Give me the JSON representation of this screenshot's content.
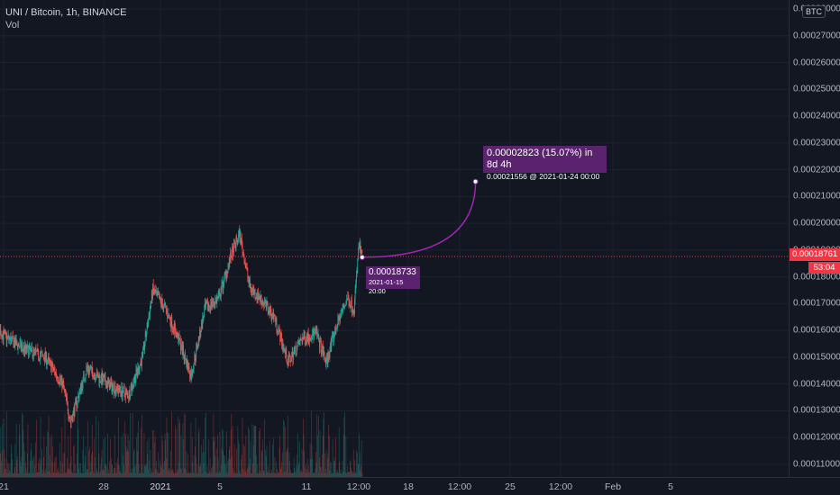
{
  "legend": {
    "symbol_line": "UNI / Bitcoin, 1h, BINANCE",
    "volume_label": "Vol"
  },
  "price_axis": {
    "currency_badge": "BTC",
    "ticks": [
      "0.00028000",
      "0.00027000",
      "0.00026000",
      "0.00025000",
      "0.00024000",
      "0.00023000",
      "0.00022000",
      "0.00021000",
      "0.00020000",
      "0.00019000",
      "0.00018000",
      "0.00017000",
      "0.00016000",
      "0.00015000",
      "0.00014000",
      "0.00013000",
      "0.00012000",
      "0.00011000"
    ],
    "current_price": "0.00018761",
    "countdown": "53:04"
  },
  "time_axis": {
    "ticks": [
      "21",
      "28",
      "2021",
      "5",
      "11",
      "12:00",
      "18",
      "12:00",
      "25",
      "12:00",
      "Feb",
      "5"
    ]
  },
  "projection": {
    "change_text": "0.00002823 (15.07%) in 8d 4h",
    "target_text": "0.00021556 @ 2021-01-24  00:00",
    "start_price": "0.00018733",
    "start_time": "2021-01-15 20:00"
  },
  "colors": {
    "up": "#26a69a",
    "down": "#ef5350",
    "projection": "#9c27b0",
    "label_bg": "#5b2270",
    "price_tag": "#f23645"
  },
  "chart_data": {
    "type": "candlestick",
    "symbol": "UNI / Bitcoin",
    "interval": "1h",
    "exchange": "BINANCE",
    "ylim": [
      0.000105,
      0.000285
    ],
    "close_path": [
      {
        "x": "2020-12-19T12:00",
        "y": 0.000168
      },
      {
        "x": "2020-12-21T00:00",
        "y": 0.000158
      },
      {
        "x": "2020-12-22T12:00",
        "y": 0.000153
      },
      {
        "x": "2020-12-24T00:00",
        "y": 0.00015
      },
      {
        "x": "2020-12-25T06:00",
        "y": 0.00014
      },
      {
        "x": "2020-12-25T20:00",
        "y": 0.000126
      },
      {
        "x": "2020-12-27T00:00",
        "y": 0.000146
      },
      {
        "x": "2020-12-28T12:00",
        "y": 0.00014
      },
      {
        "x": "2020-12-30T00:00",
        "y": 0.000136
      },
      {
        "x": "2020-12-31T00:00",
        "y": 0.00015
      },
      {
        "x": "2020-12-31T18:00",
        "y": 0.000175
      },
      {
        "x": "2021-01-01T16:00",
        "y": 0.000168
      },
      {
        "x": "2021-01-02T16:00",
        "y": 0.000156
      },
      {
        "x": "2021-01-03T12:00",
        "y": 0.000143
      },
      {
        "x": "2021-01-04T12:00",
        "y": 0.000168
      },
      {
        "x": "2021-01-05T12:00",
        "y": 0.000172
      },
      {
        "x": "2021-01-06T08:00",
        "y": 0.000187
      },
      {
        "x": "2021-01-07T00:00",
        "y": 0.000196
      },
      {
        "x": "2021-01-07T18:00",
        "y": 0.000176
      },
      {
        "x": "2021-01-08T12:00",
        "y": 0.000172
      },
      {
        "x": "2021-01-09T12:00",
        "y": 0.000165
      },
      {
        "x": "2021-01-10T12:00",
        "y": 0.000148
      },
      {
        "x": "2021-01-11T12:00",
        "y": 0.000157
      },
      {
        "x": "2021-01-12T12:00",
        "y": 0.000159
      },
      {
        "x": "2021-01-13T06:00",
        "y": 0.000148
      },
      {
        "x": "2021-01-14T00:00",
        "y": 0.000162
      },
      {
        "x": "2021-01-14T18:00",
        "y": 0.000172
      },
      {
        "x": "2021-01-15T06:00",
        "y": 0.000168
      },
      {
        "x": "2021-01-15T14:00",
        "y": 0.000192
      },
      {
        "x": "2021-01-15T20:00",
        "y": 0.00018733
      }
    ],
    "current_price": 0.00018761,
    "projection": {
      "from": {
        "x": "2021-01-15T20:00",
        "y": 0.00018733
      },
      "to": {
        "x": "2021-01-24T00:00",
        "y": 0.00021556
      },
      "change": 2.823e-05,
      "change_pct": 15.07,
      "duration": "8d 4h"
    }
  }
}
